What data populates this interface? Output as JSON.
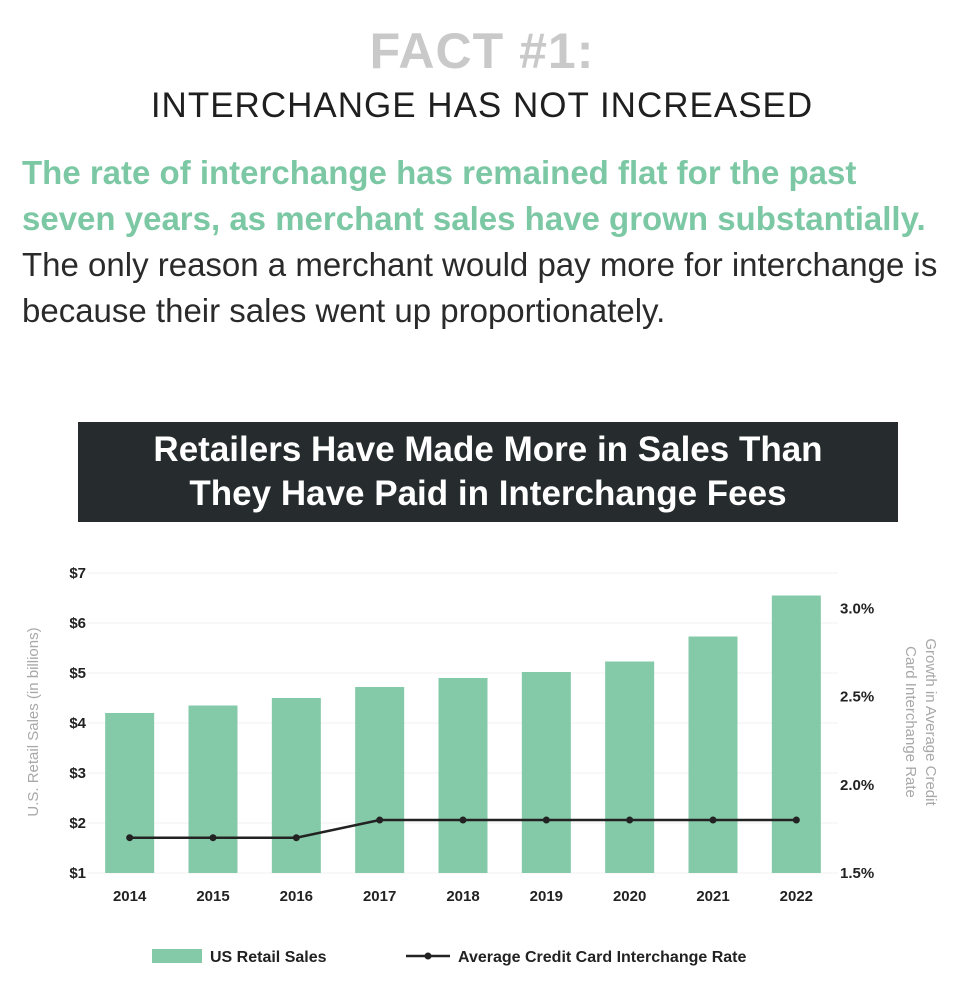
{
  "header": {
    "kicker": "FACT #1:",
    "title": "INTERCHANGE HAS NOT INCREASED"
  },
  "lede": {
    "highlight": "The rate of interchange has remained flat for the past seven years, as merchant sales have grown substantially.",
    "body": " The only reason a merchant would pay more for interchange is because their sales went up proportionately."
  },
  "colors": {
    "accent": "#7cc8a4",
    "bar": "#84c9a8",
    "line": "#222222",
    "banner": "#262c2e",
    "muted": "#a8a8a8"
  },
  "chart_data": {
    "type": "bar",
    "title_lines": [
      "Retailers Have Made More in Sales Than",
      "They Have Paid in Interchange Fees"
    ],
    "categories": [
      "2014",
      "2015",
      "2016",
      "2017",
      "2018",
      "2019",
      "2020",
      "2021",
      "2022"
    ],
    "series": [
      {
        "name": "US Retail Sales",
        "type": "bar",
        "axis": "left",
        "values": [
          4.2,
          4.35,
          4.5,
          4.72,
          4.9,
          5.02,
          5.23,
          5.73,
          6.55
        ]
      },
      {
        "name": "Average Credit Card Interchange Rate",
        "type": "line",
        "axis": "right",
        "values": [
          1.7,
          1.7,
          1.7,
          1.8,
          1.8,
          1.8,
          1.8,
          1.8,
          1.8
        ]
      }
    ],
    "ylabel": "U.S. Retail Sales (in billions)",
    "y2label": "Growth in Average Credit Card Interchange Rate",
    "y2label_lines": [
      "Growth in Average Credit",
      "Card Interchange Rate"
    ],
    "ylim": [
      1,
      7
    ],
    "y2lim": [
      1.5,
      3.2
    ],
    "yticks": [
      "$1",
      "$2",
      "$3",
      "$4",
      "$5",
      "$6",
      "$7"
    ],
    "y2ticks": [
      "1.5%",
      "2.0%",
      "2.5%",
      "3.0%"
    ],
    "y2tick_values": [
      1.5,
      2.0,
      2.5,
      3.0
    ],
    "legend_position": "bottom"
  }
}
